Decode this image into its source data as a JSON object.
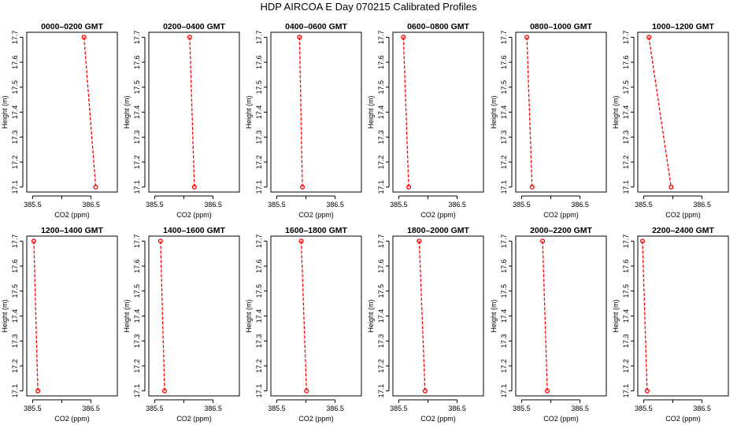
{
  "title": "HDP  AIRCOA E  Day 070215  Calibrated Profiles",
  "colors": {
    "series": "#ff0000",
    "axis": "#000000",
    "background": "#ffffff"
  },
  "chart_data": [
    {
      "type": "line",
      "title": "0000–0200 GMT",
      "xlabel": "CO2 (ppm)",
      "ylabel": "Height (m)",
      "xlim": [
        385.4,
        386.95
      ],
      "ylim": [
        17.08,
        17.72
      ],
      "xticks": [
        "385.5",
        "386.5"
      ],
      "yticks": [
        "17.1",
        "17.2",
        "17.3",
        "17.4",
        "17.5",
        "17.6",
        "17.7"
      ],
      "x": [
        386.38,
        386.58
      ],
      "y": [
        17.7,
        17.1
      ]
    },
    {
      "type": "line",
      "title": "0200–0400 GMT",
      "xlabel": "CO2 (ppm)",
      "ylabel": "Height (m)",
      "xlim": [
        385.4,
        386.95
      ],
      "ylim": [
        17.08,
        17.72
      ],
      "xticks": [
        "385.5",
        "386.5"
      ],
      "yticks": [
        "17.1",
        "17.2",
        "17.3",
        "17.4",
        "17.5",
        "17.6",
        "17.7"
      ],
      "x": [
        386.1,
        386.18
      ],
      "y": [
        17.7,
        17.1
      ]
    },
    {
      "type": "line",
      "title": "0400–0600 GMT",
      "xlabel": "CO2 (ppm)",
      "ylabel": "Height (m)",
      "xlim": [
        385.4,
        386.95
      ],
      "ylim": [
        17.08,
        17.72
      ],
      "xticks": [
        "385.5",
        "386.5"
      ],
      "yticks": [
        "17.1",
        "17.2",
        "17.3",
        "17.4",
        "17.5",
        "17.6",
        "17.7"
      ],
      "x": [
        385.89,
        385.94
      ],
      "y": [
        17.7,
        17.1
      ]
    },
    {
      "type": "line",
      "title": "0600–0800 GMT",
      "xlabel": "CO2 (ppm)",
      "ylabel": "Height (m)",
      "xlim": [
        385.4,
        386.95
      ],
      "ylim": [
        17.08,
        17.72
      ],
      "xticks": [
        "385.5",
        "386.5"
      ],
      "yticks": [
        "17.1",
        "17.2",
        "17.3",
        "17.4",
        "17.5",
        "17.6",
        "17.7"
      ],
      "x": [
        385.58,
        385.67
      ],
      "y": [
        17.7,
        17.1
      ]
    },
    {
      "type": "line",
      "title": "0800–1000 GMT",
      "xlabel": "CO2 (ppm)",
      "ylabel": "Height (m)",
      "xlim": [
        385.4,
        386.95
      ],
      "ylim": [
        17.08,
        17.72
      ],
      "xticks": [
        "385.5",
        "386.5"
      ],
      "yticks": [
        "17.1",
        "17.2",
        "17.3",
        "17.4",
        "17.5",
        "17.6",
        "17.7"
      ],
      "x": [
        385.59,
        385.68
      ],
      "y": [
        17.7,
        17.1
      ]
    },
    {
      "type": "line",
      "title": "1000–1200 GMT",
      "xlabel": "CO2 (ppm)",
      "ylabel": "Height (m)",
      "xlim": [
        385.4,
        386.95
      ],
      "ylim": [
        17.08,
        17.72
      ],
      "xticks": [
        "385.5",
        "386.5"
      ],
      "yticks": [
        "17.1",
        "17.2",
        "17.3",
        "17.4",
        "17.5",
        "17.6",
        "17.7"
      ],
      "x": [
        385.59,
        385.97
      ],
      "y": [
        17.7,
        17.1
      ]
    },
    {
      "type": "line",
      "title": "1200–1400 GMT",
      "xlabel": "CO2 (ppm)",
      "ylabel": "Height (m)",
      "xlim": [
        385.4,
        386.95
      ],
      "ylim": [
        17.08,
        17.72
      ],
      "xticks": [
        "385.5",
        "386.5"
      ],
      "yticks": [
        "17.1",
        "17.2",
        "17.3",
        "17.4",
        "17.5",
        "17.6",
        "17.7"
      ],
      "x": [
        385.52,
        385.59
      ],
      "y": [
        17.7,
        17.1
      ]
    },
    {
      "type": "line",
      "title": "1400–1600 GMT",
      "xlabel": "CO2 (ppm)",
      "ylabel": "Height (m)",
      "xlim": [
        385.4,
        386.95
      ],
      "ylim": [
        17.08,
        17.72
      ],
      "xticks": [
        "385.5",
        "386.5"
      ],
      "yticks": [
        "17.1",
        "17.2",
        "17.3",
        "17.4",
        "17.5",
        "17.6",
        "17.7"
      ],
      "x": [
        385.6,
        385.67
      ],
      "y": [
        17.7,
        17.1
      ]
    },
    {
      "type": "line",
      "title": "1600–1800 GMT",
      "xlabel": "CO2 (ppm)",
      "ylabel": "Height (m)",
      "xlim": [
        385.4,
        386.95
      ],
      "ylim": [
        17.08,
        17.72
      ],
      "xticks": [
        "385.5",
        "386.5"
      ],
      "yticks": [
        "17.1",
        "17.2",
        "17.3",
        "17.4",
        "17.5",
        "17.6",
        "17.7"
      ],
      "x": [
        385.92,
        386.01
      ],
      "y": [
        17.7,
        17.1
      ]
    },
    {
      "type": "line",
      "title": "1800–2000 GMT",
      "xlabel": "CO2 (ppm)",
      "ylabel": "Height (m)",
      "xlim": [
        385.4,
        386.95
      ],
      "ylim": [
        17.08,
        17.72
      ],
      "xticks": [
        "385.5",
        "386.5"
      ],
      "yticks": [
        "17.1",
        "17.2",
        "17.3",
        "17.4",
        "17.5",
        "17.6",
        "17.7"
      ],
      "x": [
        385.85,
        385.95
      ],
      "y": [
        17.7,
        17.1
      ]
    },
    {
      "type": "line",
      "title": "2000–2200 GMT",
      "xlabel": "CO2 (ppm)",
      "ylabel": "Height (m)",
      "xlim": [
        385.4,
        386.95
      ],
      "ylim": [
        17.08,
        17.72
      ],
      "xticks": [
        "385.5",
        "386.5"
      ],
      "yticks": [
        "17.1",
        "17.2",
        "17.3",
        "17.4",
        "17.5",
        "17.6",
        "17.7"
      ],
      "x": [
        385.86,
        385.94
      ],
      "y": [
        17.7,
        17.1
      ]
    },
    {
      "type": "line",
      "title": "2200–2400 GMT",
      "xlabel": "CO2 (ppm)",
      "ylabel": "Height (m)",
      "xlim": [
        385.4,
        386.95
      ],
      "ylim": [
        17.08,
        17.72
      ],
      "xticks": [
        "385.5",
        "386.5"
      ],
      "yticks": [
        "17.1",
        "17.2",
        "17.3",
        "17.4",
        "17.5",
        "17.6",
        "17.7"
      ],
      "x": [
        385.48,
        385.56
      ],
      "y": [
        17.7,
        17.1
      ]
    }
  ]
}
